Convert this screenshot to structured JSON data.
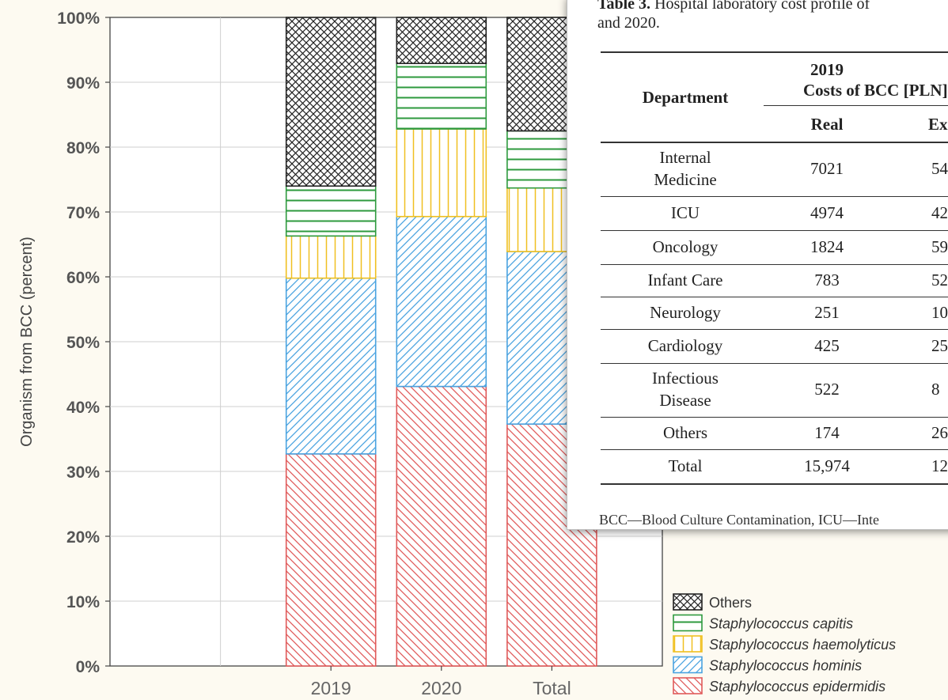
{
  "chart_data": {
    "type": "bar",
    "stacked": true,
    "categories": [
      "2019",
      "2020",
      "Total"
    ],
    "ylabel": "Organism from BCC (percent)",
    "yticks": [
      "0%",
      "10%",
      "20%",
      "30%",
      "40%",
      "50%",
      "60%",
      "70%",
      "80%",
      "90%",
      "100%"
    ],
    "ylim": [
      0,
      100
    ],
    "grid": true,
    "legend_position": "bottom-right",
    "series": [
      {
        "name": "Staphylococcus epidermidis",
        "values": [
          32.7,
          43.1,
          37.3
        ],
        "color": "#e05a5a",
        "pattern": "backslash"
      },
      {
        "name": "Staphylococcus hominis",
        "values": [
          27.1,
          26.2,
          26.6
        ],
        "color": "#4aa3e0",
        "pattern": "slash"
      },
      {
        "name": "Staphylococcus haemolyticus",
        "values": [
          6.5,
          13.5,
          9.8
        ],
        "color": "#f0c020",
        "pattern": "vertical"
      },
      {
        "name": "Staphylococcus capitis",
        "values": [
          7.7,
          10.1,
          8.8
        ],
        "color": "#2e9a3e",
        "pattern": "horizontal"
      },
      {
        "name": "Others",
        "values": [
          26.0,
          7.1,
          17.5
        ],
        "color": "#222222",
        "pattern": "cross"
      }
    ]
  },
  "popup": {
    "caption_bold": "Table 3.",
    "caption_line1": " Hospital laboratory cost profile of",
    "caption_line2": "and 2020.",
    "headers": {
      "department": "Department",
      "year": "2019",
      "costs": "Costs of BCC [PLN]",
      "real": "Real",
      "expected": "Ex"
    },
    "rows": [
      {
        "dept1": "Internal",
        "dept2": "Medicine",
        "real": "7021",
        "exp": "54"
      },
      {
        "dept1": "ICU",
        "dept2": "",
        "real": "4974",
        "exp": "42"
      },
      {
        "dept1": "Oncology",
        "dept2": "",
        "real": "1824",
        "exp": "59"
      },
      {
        "dept1": "Infant Care",
        "dept2": "",
        "real": "783",
        "exp": "52"
      },
      {
        "dept1": "Neurology",
        "dept2": "",
        "real": "251",
        "exp": "10"
      },
      {
        "dept1": "Cardiology",
        "dept2": "",
        "real": "425",
        "exp": "25"
      },
      {
        "dept1": "Infectious",
        "dept2": "Disease",
        "real": "522",
        "exp": "8"
      },
      {
        "dept1": "Others",
        "dept2": "",
        "real": "174",
        "exp": "26"
      },
      {
        "dept1": "Total",
        "dept2": "",
        "real": "15,974",
        "exp": "12,"
      }
    ],
    "footnote": "BCC—Blood Culture Contamination, ICU—Inte"
  }
}
